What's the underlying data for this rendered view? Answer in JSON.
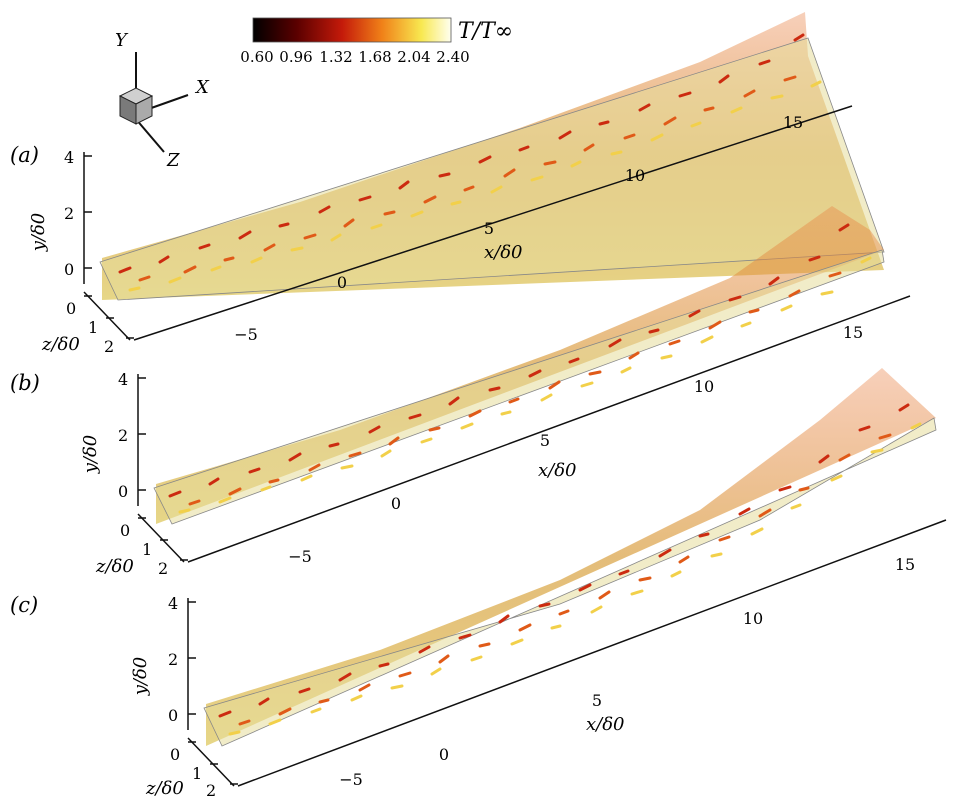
{
  "colorbar": {
    "title": "T/T∞",
    "ticks": [
      "0.60",
      "0.96",
      "1.32",
      "1.68",
      "2.04",
      "2.40"
    ],
    "colors": [
      "#000000",
      "#5a0000",
      "#c41a0a",
      "#f08018",
      "#f8e850",
      "#fffff0"
    ]
  },
  "axes_triad": {
    "y_label": "Y",
    "x_label": "X",
    "z_label": "Z"
  },
  "panels": [
    {
      "label": "(a)",
      "y_axis_label": "y/δ0",
      "y_ticks": [
        "4",
        "2",
        "0"
      ],
      "z_axis_label": "z/δ0",
      "z_ticks": [
        "0",
        "1",
        "2"
      ],
      "x_axis_label": "x/δ0",
      "x_ticks": [
        "−5",
        "0",
        "5",
        "10",
        "15"
      ]
    },
    {
      "label": "(b)",
      "y_axis_label": "y/δ0",
      "y_ticks": [
        "4",
        "2",
        "0"
      ],
      "z_axis_label": "z/δ0",
      "z_ticks": [
        "0",
        "1",
        "2"
      ],
      "x_axis_label": "x/δ0",
      "x_ticks": [
        "−5",
        "0",
        "5",
        "10",
        "15"
      ]
    },
    {
      "label": "(c)",
      "y_axis_label": "y/δ0",
      "y_ticks": [
        "4",
        "2",
        "0"
      ],
      "z_axis_label": "z/δ0",
      "z_ticks": [
        "0",
        "1",
        "2"
      ],
      "x_axis_label": "x/δ0",
      "x_ticks": [
        "−5",
        "0",
        "5",
        "10",
        "15"
      ]
    }
  ]
}
